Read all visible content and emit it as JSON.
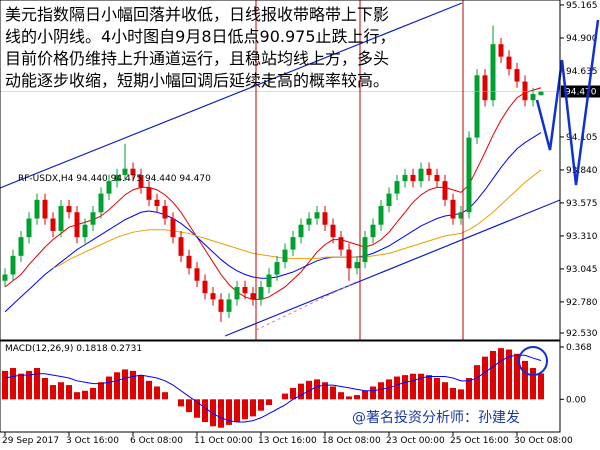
{
  "chart_data": {
    "type": "candlestick",
    "symbol_label": "RF-USDX,H4  94.440 94.475 94.440 94.470",
    "annotation": [
      "美元指数隔日小幅回落并收低，日线报收带略带上下影",
      "线的小阴线。4小时图自9月8日低点90.975止跌上行，",
      "目前价格仍维持上升通道运行，且稳站均线上方，多头",
      "动能逐步收缩，短期小幅回调后延续走高的概率较高。"
    ],
    "watermark": "@著名投资分析师：孙建发",
    "categories": [
      "29 Sep 2017",
      null,
      null,
      null,
      null,
      null,
      null,
      null,
      "3 Oct 16:00",
      null,
      null,
      null,
      null,
      null,
      null,
      null,
      "6 Oct 08:00",
      null,
      null,
      null,
      null,
      null,
      null,
      null,
      "11 Oct 00:00",
      null,
      null,
      null,
      null,
      null,
      null,
      null,
      "13 Oct 16:00",
      null,
      null,
      null,
      null,
      null,
      null,
      null,
      "18 Oct 08:00",
      null,
      null,
      null,
      null,
      null,
      null,
      null,
      "23 Oct 00:00",
      null,
      null,
      null,
      null,
      null,
      null,
      null,
      "25 Oct 16:00",
      null,
      null,
      null,
      null,
      null,
      null,
      null,
      "30 Oct 08:00",
      null,
      null,
      null
    ],
    "ohlc": [
      [
        92.95,
        93.05,
        92.9,
        93.0
      ],
      [
        93.0,
        93.2,
        92.95,
        93.15
      ],
      [
        93.15,
        93.35,
        93.1,
        93.3
      ],
      [
        93.3,
        93.5,
        93.25,
        93.45
      ],
      [
        93.45,
        93.65,
        93.4,
        93.6
      ],
      [
        93.6,
        93.65,
        93.4,
        93.45
      ],
      [
        93.45,
        93.5,
        93.3,
        93.35
      ],
      [
        93.35,
        93.6,
        93.3,
        93.55
      ],
      [
        93.55,
        93.6,
        93.45,
        93.5
      ],
      [
        93.5,
        93.55,
        93.25,
        93.3
      ],
      [
        93.3,
        93.45,
        93.25,
        93.4
      ],
      [
        93.4,
        93.55,
        93.35,
        93.5
      ],
      [
        93.5,
        93.7,
        93.45,
        93.65
      ],
      [
        93.65,
        93.8,
        93.6,
        93.75
      ],
      [
        93.75,
        93.85,
        93.7,
        93.8
      ],
      [
        93.8,
        94.05,
        93.75,
        93.85
      ],
      [
        93.85,
        93.9,
        93.75,
        93.8
      ],
      [
        93.8,
        93.85,
        93.65,
        93.7
      ],
      [
        93.7,
        93.75,
        93.55,
        93.6
      ],
      [
        93.6,
        93.65,
        93.5,
        93.55
      ],
      [
        93.55,
        93.6,
        93.4,
        93.45
      ],
      [
        93.45,
        93.5,
        93.25,
        93.3
      ],
      [
        93.3,
        93.35,
        93.1,
        93.15
      ],
      [
        93.15,
        93.2,
        93.0,
        93.05
      ],
      [
        93.05,
        93.1,
        92.9,
        92.95
      ],
      [
        92.95,
        93.0,
        92.8,
        92.85
      ],
      [
        92.85,
        92.9,
        92.75,
        92.8
      ],
      [
        92.8,
        92.85,
        92.62,
        92.7
      ],
      [
        92.7,
        92.85,
        92.65,
        92.8
      ],
      [
        92.8,
        92.95,
        92.75,
        92.9
      ],
      [
        92.9,
        92.95,
        92.8,
        92.85
      ],
      [
        92.85,
        92.9,
        92.75,
        92.8
      ],
      [
        92.8,
        92.95,
        92.75,
        92.9
      ],
      [
        92.9,
        93.05,
        92.85,
        93.0
      ],
      [
        93.0,
        93.15,
        92.95,
        93.1
      ],
      [
        93.1,
        93.25,
        93.05,
        93.2
      ],
      [
        93.2,
        93.35,
        93.15,
        93.3
      ],
      [
        93.3,
        93.45,
        93.25,
        93.4
      ],
      [
        93.4,
        93.5,
        93.35,
        93.45
      ],
      [
        93.45,
        93.55,
        93.4,
        93.5
      ],
      [
        93.5,
        93.55,
        93.35,
        93.4
      ],
      [
        93.4,
        93.45,
        93.25,
        93.3
      ],
      [
        93.3,
        93.35,
        93.15,
        93.2
      ],
      [
        93.2,
        93.25,
        92.95,
        93.05
      ],
      [
        93.05,
        93.15,
        93.0,
        93.1
      ],
      [
        93.1,
        93.35,
        93.05,
        93.3
      ],
      [
        93.3,
        93.45,
        93.25,
        93.4
      ],
      [
        93.4,
        93.6,
        93.35,
        93.55
      ],
      [
        93.55,
        93.7,
        93.5,
        93.65
      ],
      [
        93.65,
        93.8,
        93.6,
        93.75
      ],
      [
        93.75,
        93.85,
        93.7,
        93.8
      ],
      [
        93.8,
        93.85,
        93.7,
        93.75
      ],
      [
        93.75,
        93.9,
        93.7,
        93.85
      ],
      [
        93.85,
        93.9,
        93.75,
        93.8
      ],
      [
        93.8,
        93.85,
        93.7,
        93.75
      ],
      [
        93.75,
        93.8,
        93.55,
        93.6
      ],
      [
        93.6,
        93.65,
        93.4,
        93.45
      ],
      [
        93.45,
        93.55,
        93.4,
        93.5
      ],
      [
        93.5,
        94.15,
        93.45,
        94.1
      ],
      [
        94.1,
        94.65,
        94.05,
        94.6
      ],
      [
        94.6,
        94.65,
        94.35,
        94.4
      ],
      [
        94.4,
        95.0,
        94.35,
        94.85
      ],
      [
        94.85,
        94.9,
        94.7,
        94.75
      ],
      [
        94.75,
        94.8,
        94.6,
        94.65
      ],
      [
        94.65,
        94.7,
        94.5,
        94.55
      ],
      [
        94.55,
        94.6,
        94.35,
        94.4
      ],
      [
        94.4,
        94.5,
        94.35,
        94.45
      ],
      [
        94.44,
        94.475,
        94.44,
        94.47
      ]
    ],
    "up_color": "#00a030",
    "down_color": "#e00000",
    "ma_lines": [
      {
        "color": "#e00000",
        "values": [
          92.9,
          92.95,
          93.0,
          93.08,
          93.15,
          93.22,
          93.28,
          93.33,
          93.38,
          93.4,
          93.42,
          93.44,
          93.47,
          93.52,
          93.58,
          93.64,
          93.68,
          93.7,
          93.7,
          93.68,
          93.64,
          93.58,
          93.5,
          93.4,
          93.3,
          93.2,
          93.1,
          93.0,
          92.92,
          92.86,
          92.82,
          92.8,
          92.8,
          92.82,
          92.86,
          92.9,
          92.96,
          93.02,
          93.1,
          93.18,
          93.24,
          93.28,
          93.28,
          93.26,
          93.24,
          93.22,
          93.24,
          93.28,
          93.34,
          93.42,
          93.5,
          93.58,
          93.64,
          93.68,
          93.7,
          93.7,
          93.68,
          93.66,
          93.72,
          93.85,
          93.98,
          94.12,
          94.24,
          94.34,
          94.42,
          94.46,
          94.48,
          94.5
        ]
      },
      {
        "color": "#0000ff",
        "values": [
          92.7,
          92.76,
          92.82,
          92.88,
          92.94,
          93.0,
          93.05,
          93.1,
          93.15,
          93.2,
          93.24,
          93.28,
          93.32,
          93.36,
          93.4,
          93.44,
          93.47,
          93.5,
          93.51,
          93.5,
          93.48,
          93.45,
          93.41,
          93.36,
          93.3,
          93.24,
          93.18,
          93.12,
          93.07,
          93.03,
          93.0,
          92.98,
          92.97,
          92.97,
          92.98,
          93.0,
          93.02,
          93.05,
          93.08,
          93.11,
          93.13,
          93.14,
          93.14,
          93.14,
          93.14,
          93.15,
          93.17,
          93.2,
          93.23,
          93.27,
          93.31,
          93.35,
          93.39,
          93.42,
          93.45,
          93.47,
          93.48,
          93.49,
          93.53,
          93.6,
          93.68,
          93.77,
          93.86,
          93.94,
          94.01,
          94.06,
          94.1,
          94.14
        ]
      },
      {
        "color": "#e8a000",
        "values": [
          null,
          null,
          null,
          null,
          null,
          null,
          93.05,
          93.08,
          93.12,
          93.15,
          93.18,
          93.21,
          93.24,
          93.27,
          93.3,
          93.32,
          93.34,
          93.35,
          93.36,
          93.36,
          93.36,
          93.35,
          93.34,
          93.33,
          93.31,
          93.29,
          93.27,
          93.25,
          93.23,
          93.21,
          93.19,
          93.17,
          93.16,
          93.15,
          93.14,
          93.13,
          93.13,
          93.13,
          93.13,
          93.13,
          93.14,
          93.14,
          93.14,
          93.14,
          93.14,
          93.14,
          93.15,
          93.16,
          93.17,
          93.19,
          93.21,
          93.23,
          93.25,
          93.27,
          93.29,
          93.31,
          93.32,
          93.33,
          93.36,
          93.4,
          93.45,
          93.5,
          93.56,
          93.62,
          93.68,
          93.74,
          93.79,
          93.84
        ]
      }
    ],
    "ylim": [
      92.474,
      95.205
    ],
    "yticks": [
      95.165,
      {
        "value": 94.9,
        "label": "94.900"
      },
      94.635,
      94.105,
      {
        "value": 93.84,
        "label": "93.840"
      },
      93.575,
      {
        "value": 93.31,
        "label": "93.310"
      },
      93.045,
      {
        "value": 92.78,
        "label": "92.780"
      },
      {
        "value": 92.53,
        "label": "92.530"
      }
    ],
    "last_price": {
      "value": 94.47,
      "label": "94.470"
    },
    "macd": {
      "type": "bar",
      "label": "MACD(12,26,9) 0.1818 0.2731",
      "histogram": {
        "color": "#e00000",
        "values": [
          0.2,
          0.22,
          0.18,
          0.2,
          0.22,
          0.15,
          0.1,
          0.12,
          0.1,
          0.05,
          0.06,
          0.08,
          0.12,
          0.16,
          0.19,
          0.21,
          0.2,
          0.17,
          0.13,
          0.09,
          0.05,
          0.0,
          -0.05,
          -0.09,
          -0.13,
          -0.16,
          -0.19,
          -0.2,
          -0.18,
          -0.16,
          -0.14,
          -0.12,
          -0.08,
          -0.04,
          0.0,
          0.04,
          0.08,
          0.11,
          0.13,
          0.14,
          0.12,
          0.09,
          0.05,
          0.02,
          0.03,
          0.06,
          0.09,
          0.12,
          0.14,
          0.16,
          0.17,
          0.18,
          0.18,
          0.17,
          0.15,
          0.12,
          0.08,
          0.07,
          0.15,
          0.24,
          0.3,
          0.34,
          0.36,
          0.35,
          0.32,
          0.27,
          0.22,
          0.1818
        ]
      },
      "signal": {
        "color": "#0000ff",
        "values": [
          0.15,
          0.16,
          0.17,
          0.17,
          0.18,
          0.18,
          0.17,
          0.16,
          0.15,
          0.13,
          0.12,
          0.11,
          0.11,
          0.12,
          0.13,
          0.15,
          0.16,
          0.17,
          0.16,
          0.15,
          0.13,
          0.1,
          0.06,
          0.02,
          -0.02,
          -0.06,
          -0.1,
          -0.13,
          -0.15,
          -0.16,
          -0.16,
          -0.15,
          -0.13,
          -0.1,
          -0.07,
          -0.04,
          0.0,
          0.03,
          0.06,
          0.09,
          0.1,
          0.1,
          0.09,
          0.08,
          0.07,
          0.06,
          0.06,
          0.07,
          0.08,
          0.1,
          0.12,
          0.13,
          0.15,
          0.16,
          0.16,
          0.16,
          0.15,
          0.13,
          0.13,
          0.15,
          0.19,
          0.23,
          0.27,
          0.3,
          0.31,
          0.31,
          0.29,
          0.2731
        ]
      },
      "ylim": [
        -0.23,
        0.41
      ],
      "yticks": [
        0.368,
        {
          "value": 0,
          "label": "0.00"
        }
      ]
    }
  }
}
